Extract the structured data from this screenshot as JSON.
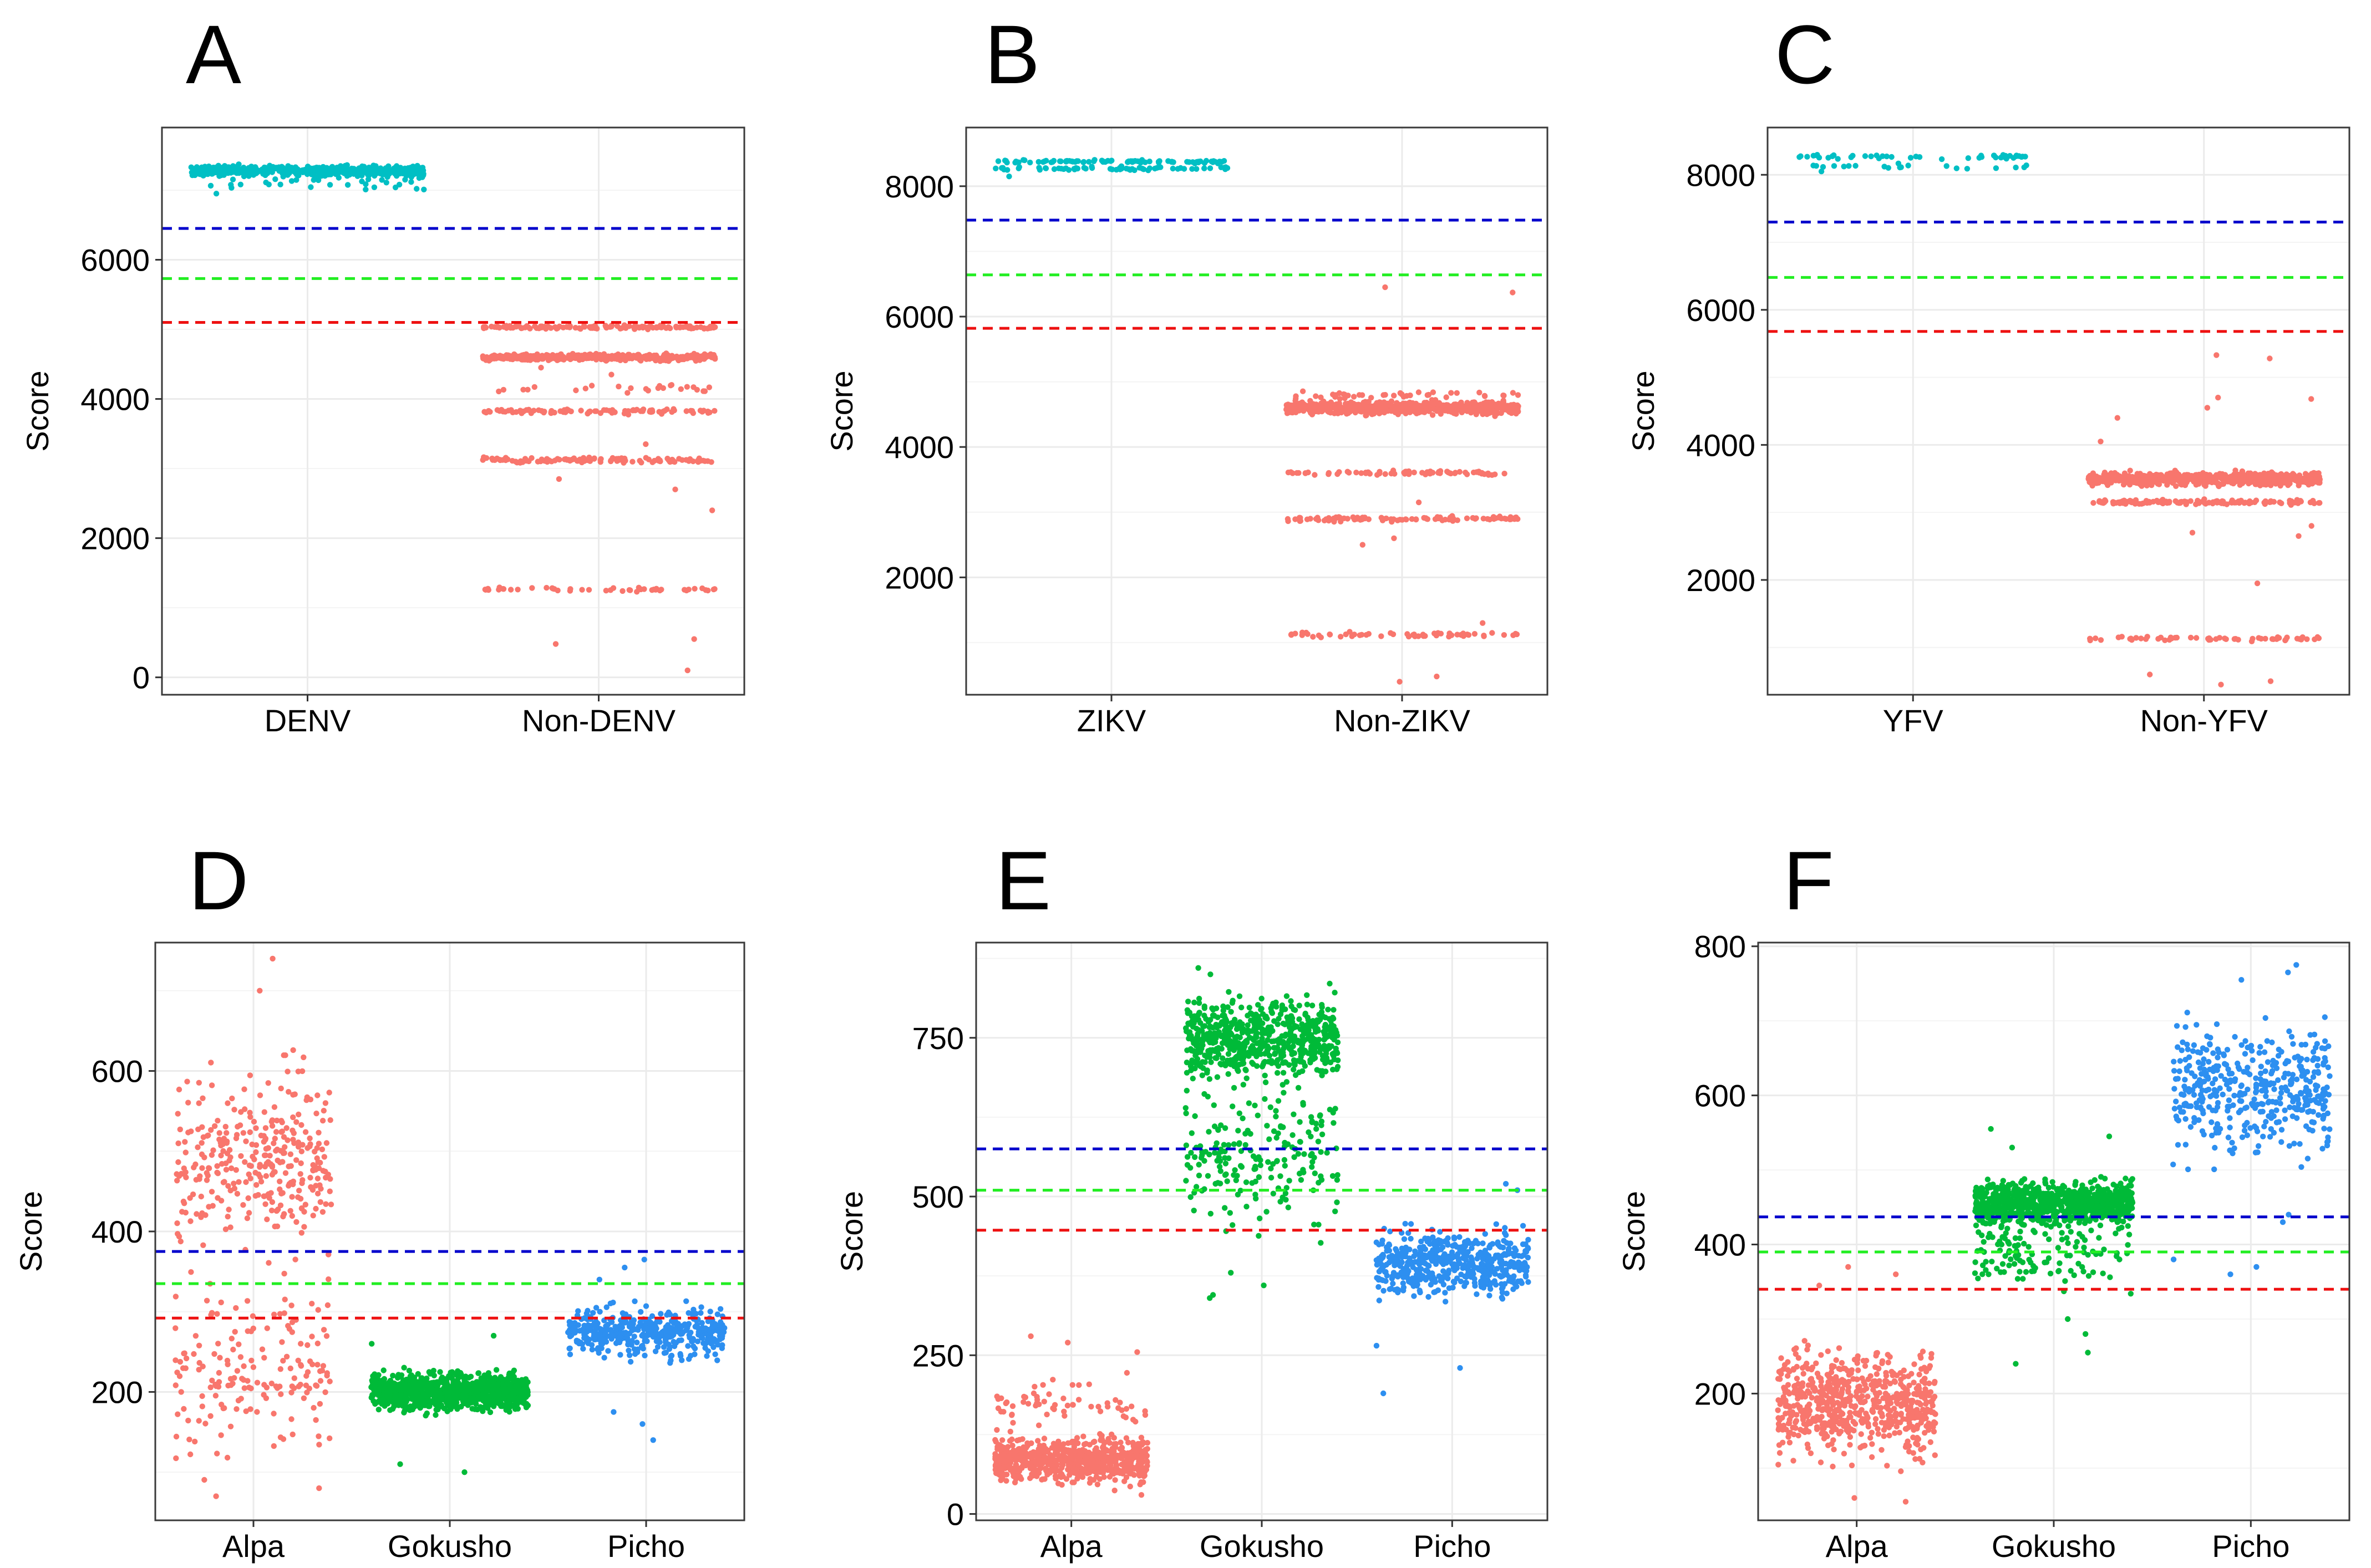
{
  "figure": {
    "colors": {
      "salmon": "#F8766D",
      "teal": "#00BFC4",
      "green": "#00BA38",
      "blue": "#2D8FF0",
      "thr_blue": "#0000CC",
      "thr_green": "#22EE22",
      "thr_red": "#EE1111"
    }
  },
  "chart_data": [
    {
      "panel": "A",
      "type": "scatter",
      "subtype": "jitter-strip",
      "xlabel": "",
      "ylabel": "Score",
      "ylim": [
        -250,
        7900
      ],
      "yticks": [
        0,
        2000,
        4000,
        6000
      ],
      "tick_labels": [
        "0",
        "2000",
        "4000",
        "6000"
      ],
      "categories": [
        "DENV",
        "Non-DENV"
      ],
      "thresholds": [
        {
          "color": "blue",
          "value": 6450
        },
        {
          "color": "green",
          "value": 5730
        },
        {
          "color": "red",
          "value": 5100
        }
      ],
      "series": [
        {
          "name": "DENV",
          "color": "teal",
          "bands": [
            {
              "center": 7280,
              "spread": 60,
              "count": 600
            },
            {
              "center": 7150,
              "spread": 120,
              "count": 40
            }
          ],
          "outliers": [
            7020,
            6950,
            7080
          ]
        },
        {
          "name": "Non-DENV",
          "color": "salmon",
          "bands": [
            {
              "center": 5030,
              "spread": 25,
              "count": 130
            },
            {
              "center": 4600,
              "spread": 40,
              "count": 450
            },
            {
              "center": 4150,
              "spread": 60,
              "count": 25
            },
            {
              "center": 3820,
              "spread": 30,
              "count": 90
            },
            {
              "center": 3120,
              "spread": 30,
              "count": 110
            },
            {
              "center": 1260,
              "spread": 25,
              "count": 45
            }
          ],
          "outliers": [
            2850,
            2700,
            2400,
            550,
            480,
            100,
            4350,
            4450,
            3350
          ]
        }
      ]
    },
    {
      "panel": "B",
      "type": "scatter",
      "subtype": "jitter-strip",
      "xlabel": "",
      "ylabel": "Score",
      "ylim": [
        200,
        8900
      ],
      "yticks": [
        2000,
        4000,
        6000,
        8000
      ],
      "tick_labels": [
        "2000",
        "4000",
        "6000",
        "8000"
      ],
      "categories": [
        "ZIKV",
        "Non-ZIKV"
      ],
      "thresholds": [
        {
          "color": "blue",
          "value": 7480
        },
        {
          "color": "green",
          "value": 6640
        },
        {
          "color": "red",
          "value": 5820
        }
      ],
      "series": [
        {
          "name": "ZIKV",
          "color": "teal",
          "bands": [
            {
              "center": 8380,
              "spread": 25,
              "count": 80
            },
            {
              "center": 8270,
              "spread": 25,
              "count": 60
            }
          ],
          "outliers": [
            8150
          ]
        },
        {
          "name": "Non-ZIKV",
          "color": "salmon",
          "bands": [
            {
              "center": 4600,
              "spread": 80,
              "count": 700
            },
            {
              "center": 4800,
              "spread": 50,
              "count": 40
            },
            {
              "center": 3600,
              "spread": 30,
              "count": 70
            },
            {
              "center": 2900,
              "spread": 30,
              "count": 100
            },
            {
              "center": 1120,
              "spread": 35,
              "count": 55
            }
          ],
          "outliers": [
            6450,
            6370,
            3150,
            2500,
            2600,
            480,
            400,
            1300
          ]
        }
      ]
    },
    {
      "panel": "C",
      "type": "scatter",
      "subtype": "jitter-strip",
      "xlabel": "",
      "ylabel": "Score",
      "ylim": [
        300,
        8700
      ],
      "yticks": [
        2000,
        4000,
        6000,
        8000
      ],
      "tick_labels": [
        "2000",
        "4000",
        "6000",
        "8000"
      ],
      "categories": [
        "YFV",
        "Non-YFV"
      ],
      "thresholds": [
        {
          "color": "blue",
          "value": 7300
        },
        {
          "color": "green",
          "value": 6480
        },
        {
          "color": "red",
          "value": 5680
        }
      ],
      "series": [
        {
          "name": "YFV",
          "color": "teal",
          "bands": [
            {
              "center": 8270,
              "spread": 25,
              "count": 45
            },
            {
              "center": 8120,
              "spread": 30,
              "count": 20
            }
          ],
          "outliers": [
            8050
          ]
        },
        {
          "name": "Non-YFV",
          "color": "salmon",
          "bands": [
            {
              "center": 3500,
              "spread": 80,
              "count": 700
            },
            {
              "center": 3150,
              "spread": 30,
              "count": 140
            },
            {
              "center": 1130,
              "spread": 30,
              "count": 55
            }
          ],
          "outliers": [
            5330,
            5280,
            4680,
            4700,
            4550,
            4400,
            4050,
            2800,
            2700,
            2650,
            1950,
            600,
            500,
            450
          ]
        }
      ]
    },
    {
      "panel": "D",
      "type": "scatter",
      "subtype": "jitter-strip",
      "xlabel": "",
      "ylabel": "Score",
      "ylim": [
        40,
        760
      ],
      "yticks": [
        200,
        400,
        600
      ],
      "tick_labels": [
        "200",
        "400",
        "600"
      ],
      "categories": [
        "Alpa",
        "Gokusho",
        "Picho"
      ],
      "thresholds": [
        {
          "color": "blue",
          "value": 375
        },
        {
          "color": "green",
          "value": 335
        },
        {
          "color": "red",
          "value": 292
        }
      ],
      "series": [
        {
          "name": "Alpa",
          "color": "salmon",
          "bands": [
            {
              "center": 490,
              "spread": 95,
              "count": 330
            },
            {
              "center": 220,
              "spread": 90,
              "count": 170
            }
          ],
          "outliers": [
            740,
            700,
            80,
            70
          ]
        },
        {
          "name": "Gokusho",
          "color": "green",
          "bands": [
            {
              "center": 200,
              "spread": 20,
              "count": 900
            }
          ],
          "outliers": [
            270,
            260,
            110,
            100
          ]
        },
        {
          "name": "Picho",
          "color": "blue",
          "bands": [
            {
              "center": 275,
              "spread": 25,
              "count": 420
            }
          ],
          "outliers": [
            365,
            355,
            340,
            175,
            160,
            140
          ]
        }
      ]
    },
    {
      "panel": "E",
      "type": "scatter",
      "subtype": "jitter-strip",
      "xlabel": "",
      "ylabel": "Score",
      "ylim": [
        -10,
        900
      ],
      "yticks": [
        0,
        250,
        500,
        750
      ],
      "tick_labels": [
        "0",
        "250",
        "500",
        "750"
      ],
      "categories": [
        "Alpa",
        "Gokusho",
        "Picho"
      ],
      "thresholds": [
        {
          "color": "blue",
          "value": 575
        },
        {
          "color": "green",
          "value": 510
        },
        {
          "color": "red",
          "value": 447
        }
      ],
      "series": [
        {
          "name": "Alpa",
          "color": "salmon",
          "bands": [
            {
              "center": 85,
              "spread": 30,
              "count": 650
            },
            {
              "center": 170,
              "spread": 35,
              "count": 60
            }
          ],
          "outliers": [
            280,
            270,
            255,
            30
          ]
        },
        {
          "name": "Gokusho",
          "color": "green",
          "bands": [
            {
              "center": 750,
              "spread": 55,
              "count": 650
            },
            {
              "center": 560,
              "spread": 90,
              "count": 200
            }
          ],
          "outliers": [
            860,
            850,
            380,
            360,
            345,
            340
          ]
        },
        {
          "name": "Picho",
          "color": "blue",
          "bands": [
            {
              "center": 395,
              "spread": 45,
              "count": 500
            }
          ],
          "outliers": [
            520,
            510,
            230,
            190,
            265
          ]
        }
      ]
    },
    {
      "panel": "F",
      "type": "scatter",
      "subtype": "jitter-strip",
      "xlabel": "",
      "ylabel": "Score",
      "ylim": [
        30,
        805
      ],
      "yticks": [
        200,
        400,
        600,
        800
      ],
      "tick_labels": [
        "200",
        "400",
        "600",
        "800"
      ],
      "categories": [
        "Alpa",
        "Gokusho",
        "Picho"
      ],
      "thresholds": [
        {
          "color": "blue",
          "value": 437
        },
        {
          "color": "green",
          "value": 390
        },
        {
          "color": "red",
          "value": 340
        }
      ],
      "series": [
        {
          "name": "Alpa",
          "color": "salmon",
          "bands": [
            {
              "center": 185,
              "spread": 60,
              "count": 650
            }
          ],
          "outliers": [
            370,
            360,
            345,
            60,
            55
          ]
        },
        {
          "name": "Gokusho",
          "color": "green",
          "bands": [
            {
              "center": 455,
              "spread": 25,
              "count": 850
            },
            {
              "center": 390,
              "spread": 40,
              "count": 120
            }
          ],
          "outliers": [
            555,
            545,
            530,
            300,
            280,
            255,
            240
          ]
        },
        {
          "name": "Picho",
          "color": "blue",
          "bands": [
            {
              "center": 610,
              "spread": 75,
              "count": 420
            }
          ],
          "outliers": [
            775,
            765,
            755,
            440,
            430,
            380,
            370,
            360
          ]
        }
      ]
    }
  ]
}
